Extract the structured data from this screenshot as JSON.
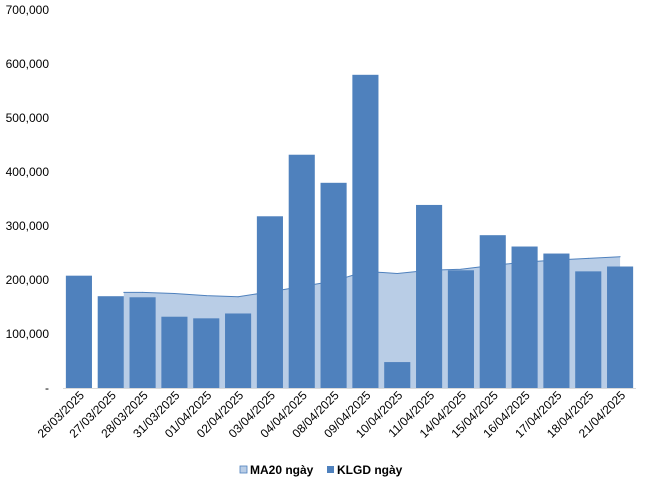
{
  "chart_data": {
    "type": "bar",
    "categories": [
      "26/03/2025",
      "27/03/2025",
      "28/03/2025",
      "31/03/2025",
      "01/04/2025",
      "02/04/2025",
      "03/04/2025",
      "04/04/2025",
      "08/04/2025",
      "09/04/2025",
      "10/04/2025",
      "11/04/2025",
      "14/04/2025",
      "15/04/2025",
      "16/04/2025",
      "17/04/2025",
      "18/04/2025",
      "21/04/2025"
    ],
    "series": [
      {
        "name": "MA20 ngày",
        "kind": "area",
        "color": "#b9cde6",
        "stroke": "#4f81bd",
        "values": [
          null,
          177000,
          177000,
          175000,
          171000,
          169000,
          178000,
          188000,
          198000,
          216000,
          212000,
          218000,
          220000,
          227000,
          233000,
          237000,
          240000,
          243000
        ]
      },
      {
        "name": "KLGD ngày",
        "kind": "bar",
        "color": "#4f81bd",
        "values": [
          208000,
          170000,
          168000,
          132000,
          129000,
          138000,
          318000,
          432000,
          380000,
          580000,
          48000,
          339000,
          218000,
          283000,
          262000,
          249000,
          216000,
          225000
        ]
      }
    ],
    "y_ticks": [
      "-",
      "100,000",
      "200,000",
      "300,000",
      "400,000",
      "500,000",
      "600,000",
      "700,000"
    ],
    "ylim": [
      0,
      700000
    ],
    "grid": false,
    "legend_position": "bottom"
  }
}
